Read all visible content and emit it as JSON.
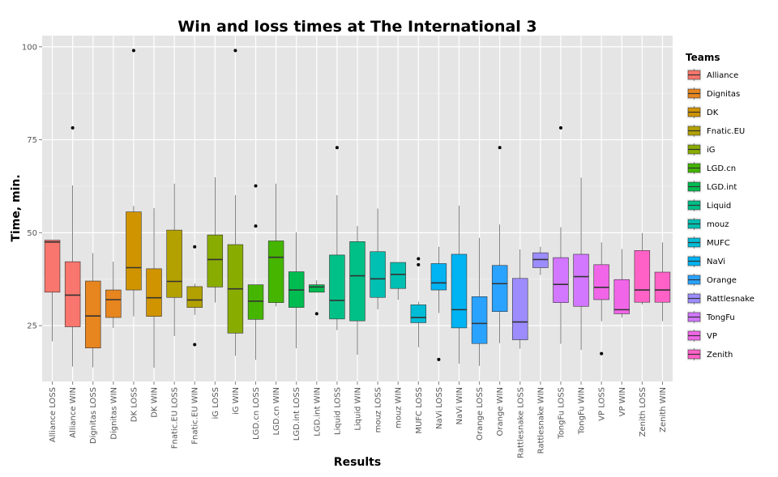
{
  "chart_data": {
    "type": "box",
    "title": "Win and loss times at The International 3",
    "xlabel": "Results",
    "ylabel": "Time, min.",
    "ylim": [
      10,
      103
    ],
    "yticks": [
      25,
      50,
      75,
      100
    ],
    "legend": {
      "title": "Teams",
      "position": "right"
    },
    "teams": [
      {
        "name": "Alliance",
        "color": "#F8766D"
      },
      {
        "name": "Dignitas",
        "color": "#E7851E"
      },
      {
        "name": "DK",
        "color": "#D09400"
      },
      {
        "name": "Fnatic.EU",
        "color": "#B2A100"
      },
      {
        "name": "iG",
        "color": "#89AC00"
      },
      {
        "name": "LGD.cn",
        "color": "#45B500"
      },
      {
        "name": "LGD.int",
        "color": "#00BC51"
      },
      {
        "name": "Liquid",
        "color": "#00C087"
      },
      {
        "name": "mouz",
        "color": "#00C0B2"
      },
      {
        "name": "MUFC",
        "color": "#00BCD6"
      },
      {
        "name": "NaVi",
        "color": "#00B3F2"
      },
      {
        "name": "Orange",
        "color": "#29A3FF"
      },
      {
        "name": "Rattlesnake",
        "color": "#9C8DFF"
      },
      {
        "name": "TongFu",
        "color": "#D277FF"
      },
      {
        "name": "VP",
        "color": "#F166E8"
      },
      {
        "name": "Zenith",
        "color": "#FF61C7"
      }
    ],
    "boxes": [
      {
        "category": "Alliance LOSS",
        "team": 0,
        "whisker_low": 20.8,
        "q1": 34.0,
        "median": 47.5,
        "q3": 48.0,
        "whisker_high": 48.0,
        "outliers": []
      },
      {
        "category": "Alliance WIN",
        "team": 0,
        "whisker_low": 14.0,
        "q1": 24.7,
        "median": 33.2,
        "q3": 42.2,
        "whisker_high": 62.7,
        "outliers": [
          78.2
        ]
      },
      {
        "category": "Dignitas LOSS",
        "team": 1,
        "whisker_low": 13.8,
        "q1": 19.0,
        "median": 27.6,
        "q3": 37.0,
        "whisker_high": 44.5,
        "outliers": []
      },
      {
        "category": "Dignitas WIN",
        "team": 1,
        "whisker_low": 24.4,
        "q1": 27.2,
        "median": 32.0,
        "q3": 34.6,
        "whisker_high": 42.2,
        "outliers": []
      },
      {
        "category": "DK LOSS",
        "team": 2,
        "whisker_low": 27.5,
        "q1": 34.6,
        "median": 40.6,
        "q3": 55.6,
        "whisker_high": 57.2,
        "outliers": [
          99.0
        ]
      },
      {
        "category": "DK WIN",
        "team": 2,
        "whisker_low": 13.7,
        "q1": 27.5,
        "median": 32.5,
        "q3": 40.3,
        "whisker_high": 56.6,
        "outliers": []
      },
      {
        "category": "Fnatic.EU LOSS",
        "team": 3,
        "whisker_low": 22.2,
        "q1": 32.6,
        "median": 36.9,
        "q3": 50.7,
        "whisker_high": 63.2,
        "outliers": []
      },
      {
        "category": "Fnatic.EU WIN",
        "team": 3,
        "whisker_low": 27.9,
        "q1": 29.9,
        "median": 31.9,
        "q3": 35.5,
        "whisker_high": 36.3,
        "outliers": [
          46.2,
          19.9
        ]
      },
      {
        "category": "iG LOSS",
        "team": 4,
        "whisker_low": 31.2,
        "q1": 35.4,
        "median": 42.8,
        "q3": 49.4,
        "whisker_high": 64.9,
        "outliers": []
      },
      {
        "category": "iG WIN",
        "team": 4,
        "whisker_low": 16.9,
        "q1": 23.0,
        "median": 34.9,
        "q3": 46.8,
        "whisker_high": 60.1,
        "outliers": [
          99.0
        ]
      },
      {
        "category": "LGD.cn LOSS",
        "team": 5,
        "whisker_low": 15.8,
        "q1": 26.7,
        "median": 31.6,
        "q3": 36.0,
        "whisker_high": 36.0,
        "outliers": [
          62.6,
          51.8
        ]
      },
      {
        "category": "LGD.cn WIN",
        "team": 5,
        "whisker_low": 30.2,
        "q1": 31.2,
        "median": 43.4,
        "q3": 47.8,
        "whisker_high": 63.2,
        "outliers": []
      },
      {
        "category": "LGD.int LOSS",
        "team": 6,
        "whisker_low": 18.9,
        "q1": 29.9,
        "median": 34.6,
        "q3": 39.5,
        "whisker_high": 50.1,
        "outliers": []
      },
      {
        "category": "LGD.int WIN",
        "team": 6,
        "whisker_low": 34.0,
        "q1": 34.0,
        "median": 35.4,
        "q3": 36.0,
        "whisker_high": 37.2,
        "outliers": [
          28.2
        ]
      },
      {
        "category": "Liquid LOSS",
        "team": 7,
        "whisker_low": 23.8,
        "q1": 26.8,
        "median": 31.8,
        "q3": 44.0,
        "whisker_high": 60.1,
        "outliers": [
          72.9
        ]
      },
      {
        "category": "Liquid WIN",
        "team": 7,
        "whisker_low": 17.2,
        "q1": 26.3,
        "median": 38.4,
        "q3": 47.6,
        "whisker_high": 51.8,
        "outliers": []
      },
      {
        "category": "mouz LOSS",
        "team": 8,
        "whisker_low": 29.4,
        "q1": 32.6,
        "median": 37.6,
        "q3": 44.9,
        "whisker_high": 56.5,
        "outliers": []
      },
      {
        "category": "mouz WIN",
        "team": 8,
        "whisker_low": 32.0,
        "q1": 35.0,
        "median": 38.8,
        "q3": 42.0,
        "whisker_high": 42.0,
        "outliers": []
      },
      {
        "category": "MUFC LOSS",
        "team": 9,
        "whisker_low": 19.2,
        "q1": 25.8,
        "median": 27.2,
        "q3": 30.6,
        "whisker_high": 31.4,
        "outliers": [
          43.0,
          41.4
        ]
      },
      {
        "category": "NaVi LOSS",
        "team": 10,
        "whisker_low": 28.4,
        "q1": 34.6,
        "median": 36.5,
        "q3": 41.7,
        "whisker_high": 46.2,
        "outliers": [
          15.9
        ]
      },
      {
        "category": "NaVi WIN",
        "team": 10,
        "whisker_low": 14.8,
        "q1": 24.4,
        "median": 29.3,
        "q3": 44.2,
        "whisker_high": 57.3,
        "outliers": []
      },
      {
        "category": "Orange LOSS",
        "team": 11,
        "whisker_low": 14.2,
        "q1": 20.2,
        "median": 25.6,
        "q3": 32.8,
        "whisker_high": 48.6,
        "outliers": []
      },
      {
        "category": "Orange WIN",
        "team": 11,
        "whisker_low": 20.3,
        "q1": 28.8,
        "median": 36.3,
        "q3": 41.2,
        "whisker_high": 52.2,
        "outliers": [
          72.9
        ]
      },
      {
        "category": "Rattlesnake LOSS",
        "team": 12,
        "whisker_low": 18.8,
        "q1": 21.2,
        "median": 26.0,
        "q3": 37.7,
        "whisker_high": 45.5,
        "outliers": []
      },
      {
        "category": "Rattlesnake WIN",
        "team": 12,
        "whisker_low": 38.6,
        "q1": 40.6,
        "median": 42.8,
        "q3": 44.6,
        "whisker_high": 46.2,
        "outliers": []
      },
      {
        "category": "TongFu LOSS",
        "team": 13,
        "whisker_low": 20.1,
        "q1": 31.2,
        "median": 36.1,
        "q3": 43.3,
        "whisker_high": 51.5,
        "outliers": [
          78.2
        ]
      },
      {
        "category": "TongFu WIN",
        "team": 13,
        "whisker_low": 18.5,
        "q1": 30.2,
        "median": 38.2,
        "q3": 44.2,
        "whisker_high": 64.8,
        "outliers": []
      },
      {
        "category": "VP LOSS",
        "team": 14,
        "whisker_low": 26.2,
        "q1": 32.0,
        "median": 35.3,
        "q3": 41.4,
        "whisker_high": 47.4,
        "outliers": [
          17.5
        ]
      },
      {
        "category": "VP WIN",
        "team": 14,
        "whisker_low": 27.2,
        "q1": 28.2,
        "median": 29.3,
        "q3": 37.4,
        "whisker_high": 45.6,
        "outliers": []
      },
      {
        "category": "Zenith LOSS",
        "team": 15,
        "whisker_low": 30.7,
        "q1": 31.3,
        "median": 34.6,
        "q3": 45.2,
        "whisker_high": 49.9,
        "outliers": []
      },
      {
        "category": "Zenith WIN",
        "team": 15,
        "whisker_low": 26.2,
        "q1": 31.3,
        "median": 34.6,
        "q3": 39.4,
        "whisker_high": 47.4,
        "outliers": []
      }
    ]
  }
}
